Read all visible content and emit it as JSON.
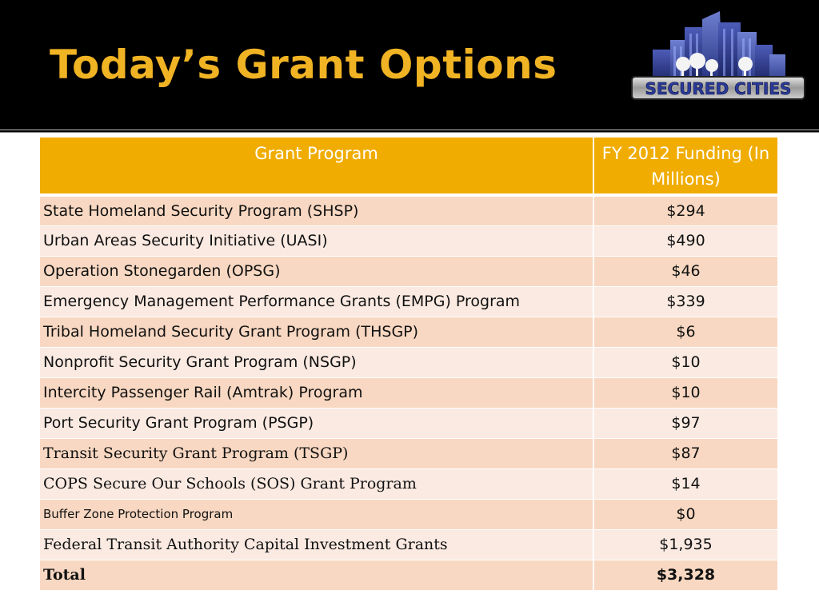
{
  "title": "Today’s Grant Options",
  "logo": {
    "text": "SECURED CITIES",
    "icon": "city-skyline-icon"
  },
  "table": {
    "headers": [
      "Grant Program",
      "FY 2012 Funding (In Millions)"
    ],
    "rows": [
      {
        "program": "State Homeland Security Program (SHSP)",
        "funding": "$294"
      },
      {
        "program": "Urban Areas Security Initiative (UASI)",
        "funding": "$490"
      },
      {
        "program": "Operation Stonegarden (OPSG)",
        "funding": "$46"
      },
      {
        "program": "Emergency Management Performance Grants (EMPG) Program",
        "funding": "$339"
      },
      {
        "program": "Tribal Homeland Security Grant Program (THSGP)",
        "funding": "$6"
      },
      {
        "program": "Nonprofit Security Grant Program (NSGP)",
        "funding": "$10"
      },
      {
        "program": "Intercity Passenger Rail (Amtrak) Program",
        "funding": "$10"
      },
      {
        "program": "Port Security Grant Program (PSGP)",
        "funding": "$97"
      },
      {
        "program": "Transit Security Grant Program (TSGP)",
        "funding": "$87"
      },
      {
        "program": "COPS Secure Our Schools (SOS) Grant Program",
        "funding": "$14"
      },
      {
        "program": "Buffer Zone Protection Program",
        "funding": "$0"
      },
      {
        "program": "Federal Transit Authority Capital Investment Grants",
        "funding": "$1,935"
      }
    ],
    "total": {
      "program": "Total",
      "funding": "$3,328"
    }
  },
  "colors": {
    "accent": "#f0b323",
    "header_fill": "#f0ac00",
    "row_odd": "#f8d8c2",
    "row_even": "#faeae2"
  }
}
